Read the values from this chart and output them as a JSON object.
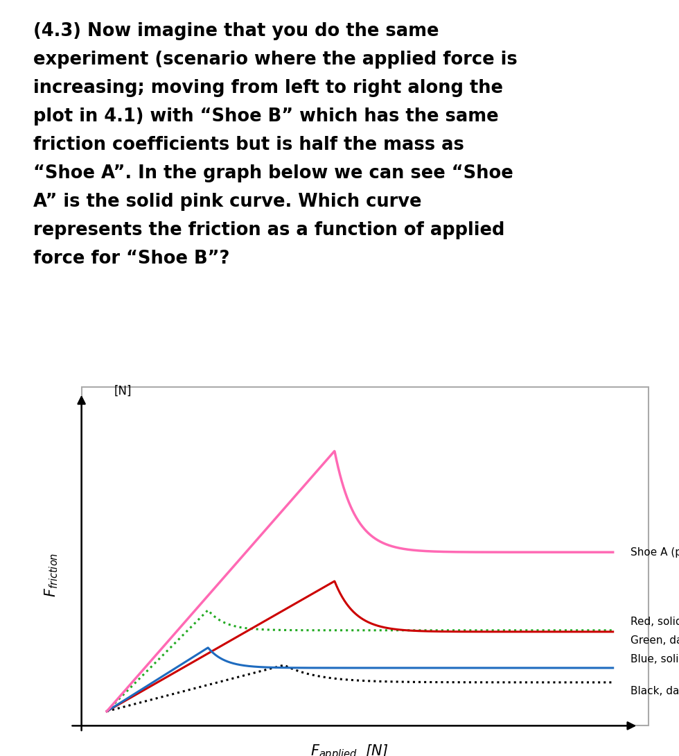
{
  "title_text": "(4.3) Now imagine that you do the same\nexperiment (scenario where the applied force is\nincreasing; moving from left to right along the\nplot in 4.1) with “Shoe B” which has the same\nfriction coefficients but is half the mass as\n“Shoe A”. In the graph below we can see “Shoe\nA” is the solid pink curve. Which curve\nrepresents the friction as a function of applied\nforce for “Shoe B”?",
  "background_color": "#ffffff",
  "pink_color": "#ff69b4",
  "red_color": "#cc0000",
  "green_color": "#22aa22",
  "blue_color": "#1e6bbf",
  "black_color": "#000000",
  "legend_labels": [
    "Shoe A (pink, solid)",
    "Red, solid",
    "Green, dashed",
    "Blue, solid",
    "Black, dashed"
  ],
  "y_max": 10.5,
  "x_max": 10.0
}
